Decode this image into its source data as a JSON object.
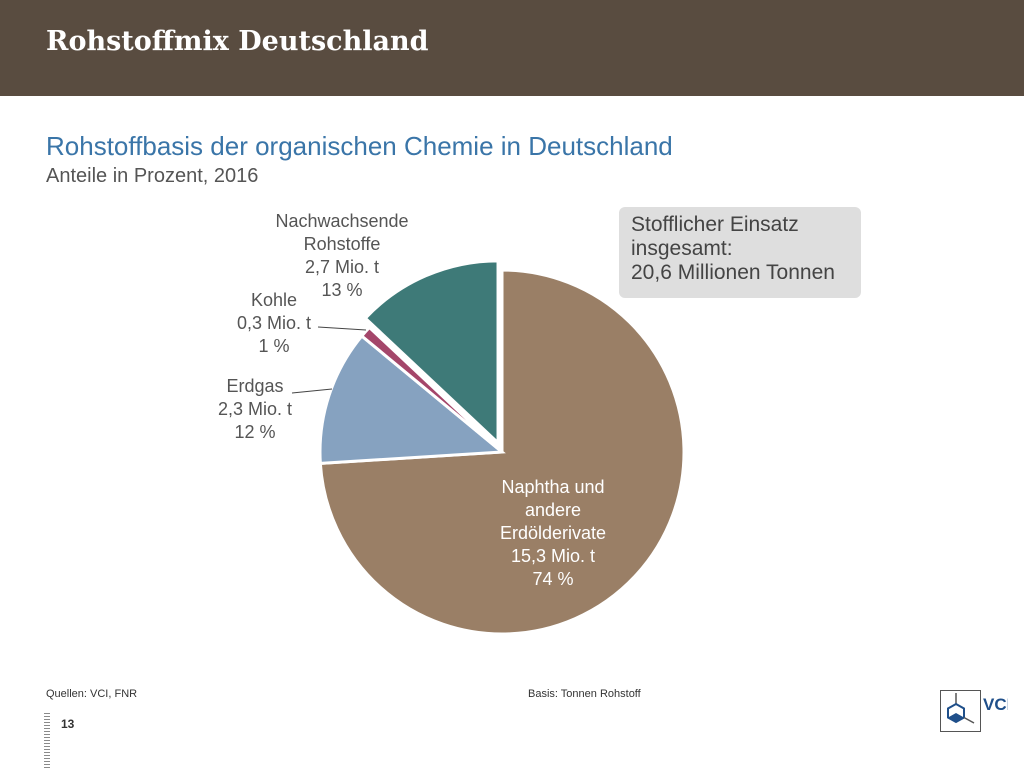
{
  "header": {
    "title": "Rohstoffmix Deutschland"
  },
  "chart_data": {
    "type": "pie",
    "title": "Rohstoffbasis der organischen Chemie in Deutschland",
    "subtitle": "Anteile in Prozent, 2016",
    "slices": [
      {
        "name": "Naphtha und andere Erdölderivate",
        "amount": "15,3 Mio. t",
        "percent": 74,
        "color": "#9a7f66",
        "label_lines": [
          "Naphtha und",
          "andere",
          "Erdölderivate",
          "15,3 Mio. t",
          "74 %"
        ]
      },
      {
        "name": "Erdgas",
        "amount": "2,3 Mio. t",
        "percent": 12,
        "color": "#86a2c0",
        "label_lines": [
          "Erdgas",
          "2,3 Mio. t",
          "12 %"
        ]
      },
      {
        "name": "Kohle",
        "amount": "0,3 Mio. t",
        "percent": 1,
        "color": "#a4466a",
        "label_lines": [
          "Kohle",
          "0,3 Mio. t",
          "1 %"
        ]
      },
      {
        "name": "Nachwachsende Rohstoffe",
        "amount": "2,7 Mio. t",
        "percent": 13,
        "color": "#3e7a78",
        "label_lines": [
          "Nachwachsende",
          "Rohstoffe",
          "2,7 Mio. t",
          "13 %"
        ]
      }
    ]
  },
  "info_box": {
    "lines": [
      "Stofflicher Einsatz",
      "insgesamt:",
      "20,6 Millionen Tonnen"
    ]
  },
  "footer": {
    "sources": "Quellen: VCI, FNR",
    "basis": "Basis: Tonnen Rohstoff",
    "page_number": "13"
  },
  "logo": {
    "text": "VCI",
    "color": "#1f4f8a"
  }
}
